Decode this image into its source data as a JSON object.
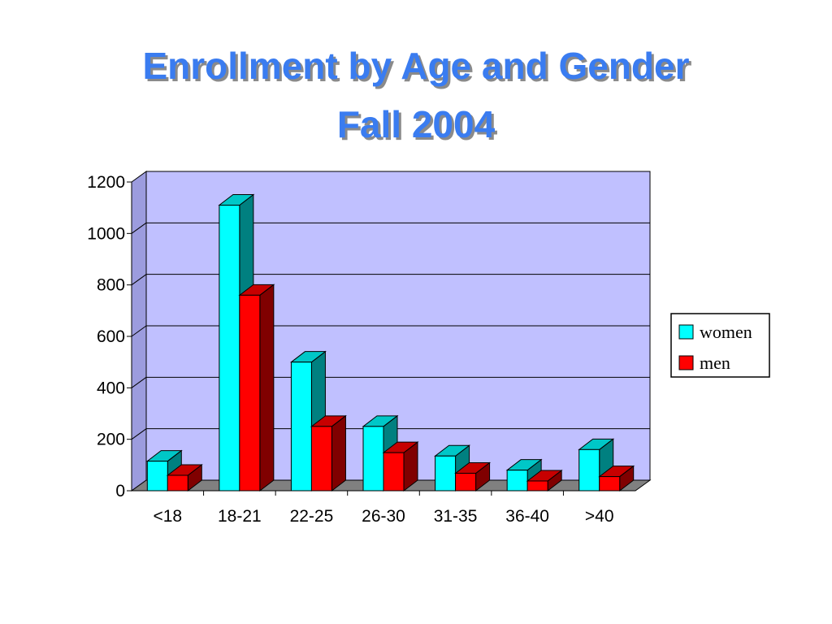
{
  "title_line1": "Enrollment by Age and Gender",
  "title_line2": "Fall 2004",
  "chart_data": {
    "type": "bar",
    "title": "Enrollment by Age and Gender Fall 2004",
    "categories": [
      "<18",
      "18-21",
      "22-25",
      "26-30",
      "31-35",
      "36-40",
      ">40"
    ],
    "series": [
      {
        "name": "women",
        "color": "#00ffff",
        "values": [
          115,
          1110,
          500,
          250,
          135,
          80,
          160
        ]
      },
      {
        "name": "men",
        "color": "#ff0000",
        "values": [
          60,
          760,
          250,
          148,
          68,
          38,
          55
        ]
      }
    ],
    "ylim": [
      0,
      1200
    ],
    "yticks": [
      "0",
      "200",
      "400",
      "600",
      "800",
      "1000",
      "1200"
    ],
    "grid": true,
    "legend": "right",
    "style": "3d-column"
  }
}
